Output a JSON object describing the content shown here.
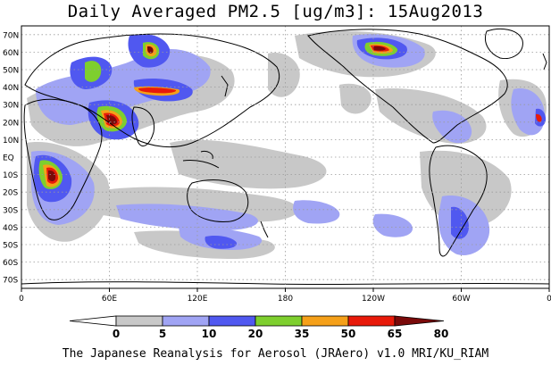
{
  "title": "Daily Averaged PM2.5 [ug/m3]: 15Aug2013",
  "footer": "The Japanese Reanalysis for Aerosol (JRAero) v1.0 MRI/KU_RIAM",
  "axes": {
    "lat_labels": [
      "70N",
      "60N",
      "50N",
      "40N",
      "30N",
      "20N",
      "10N",
      "EQ",
      "10S",
      "20S",
      "30S",
      "40S",
      "50S",
      "60S",
      "70S"
    ],
    "lon_labels": [
      "0",
      "60E",
      "120E",
      "180",
      "120W",
      "60W",
      "0"
    ]
  },
  "colorbar": {
    "thresholds": [
      "0",
      "5",
      "10",
      "20",
      "35",
      "50",
      "65",
      "80"
    ],
    "colors": [
      "#ffffff",
      "#c8c8c8",
      "#a0a4f4",
      "#5058f0",
      "#7ecf2e",
      "#f5a019",
      "#e81a0a",
      "#7a0a0a"
    ]
  },
  "colors": {
    "land_outline": "#000000",
    "grid": "#9a9a9a"
  }
}
